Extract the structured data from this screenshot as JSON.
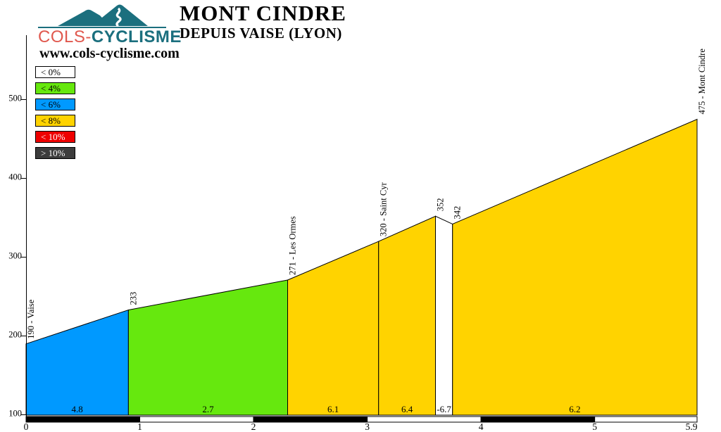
{
  "header": {
    "brand": {
      "part1": "COLS",
      "separator": "-",
      "part2": "CYCLISME",
      "part1_color": "#e0584e",
      "part2_color": "#1b6f7e"
    },
    "title": "MONT CINDRE",
    "subtitle": "DEPUIS VAISE (LYON)",
    "website": "www.cols-cyclisme.com",
    "logo_color": "#1b6f7e"
  },
  "legend": {
    "items": [
      {
        "label": "< 0%",
        "fill": "#ffffff",
        "text": "#000000"
      },
      {
        "label": "< 4%",
        "fill": "#66e80e",
        "text": "#000000"
      },
      {
        "label": "< 6%",
        "fill": "#0099ff",
        "text": "#000000"
      },
      {
        "label": "< 8%",
        "fill": "#ffd300",
        "text": "#000000"
      },
      {
        "label": "< 10%",
        "fill": "#ee0000",
        "text": "#ffffff"
      },
      {
        "label": "> 10%",
        "fill": "#3c3c3c",
        "text": "#ffffff"
      }
    ]
  },
  "chart_data": {
    "type": "area",
    "title": "MONT CINDRE DEPUIS VAISE (LYON) - climb profile",
    "x_unit": "km",
    "y_unit": "m",
    "xlim": [
      0,
      5.9
    ],
    "ylim": [
      100,
      580
    ],
    "yticks": [
      100,
      200,
      300,
      400,
      500
    ],
    "xticks": [
      {
        "km": 0,
        "label": "0"
      },
      {
        "km": 1,
        "label": "1"
      },
      {
        "km": 2,
        "label": "2"
      },
      {
        "km": 3,
        "label": "3"
      },
      {
        "km": 4,
        "label": "4"
      },
      {
        "km": 5,
        "label": "5"
      },
      {
        "km": 5.9,
        "label": "5.9"
      }
    ],
    "segments": [
      {
        "from_km": 0,
        "to_km": 0.9,
        "from_ele": 190,
        "to_ele": 233,
        "gradient_pct": "4.8",
        "fill": "#0099ff"
      },
      {
        "from_km": 0.9,
        "to_km": 2.3,
        "from_ele": 233,
        "to_ele": 271,
        "gradient_pct": "2.7",
        "fill": "#66e80e"
      },
      {
        "from_km": 2.3,
        "to_km": 3.1,
        "from_ele": 271,
        "to_ele": 320,
        "gradient_pct": "6.1",
        "fill": "#ffd300"
      },
      {
        "from_km": 3.1,
        "to_km": 3.6,
        "from_ele": 320,
        "to_ele": 352,
        "gradient_pct": "6.4",
        "fill": "#ffd300"
      },
      {
        "from_km": 3.6,
        "to_km": 3.75,
        "from_ele": 352,
        "to_ele": 342,
        "gradient_pct": "-6.7",
        "fill": "#ffffff"
      },
      {
        "from_km": 3.75,
        "to_km": 5.9,
        "from_ele": 342,
        "to_ele": 475,
        "gradient_pct": "6.2",
        "fill": "#ffd300"
      }
    ],
    "point_labels": [
      {
        "km": 0,
        "ele": 190,
        "label": "190 - Vaise"
      },
      {
        "km": 0.9,
        "ele": 233,
        "label": "233"
      },
      {
        "km": 2.3,
        "ele": 271,
        "label": "271 - Les Ormes"
      },
      {
        "km": 3.1,
        "ele": 320,
        "label": "320 - Saint Cyr"
      },
      {
        "km": 3.6,
        "ele": 352,
        "label": "352"
      },
      {
        "km": 3.75,
        "ele": 342,
        "label": "342"
      },
      {
        "km": 5.9,
        "ele": 475,
        "label": "475 - Mont Cindre"
      }
    ],
    "km_bar": [
      {
        "from": 0,
        "to": 1,
        "fill": "#000000"
      },
      {
        "from": 1,
        "to": 2,
        "fill": "#ffffff"
      },
      {
        "from": 2,
        "to": 3,
        "fill": "#000000"
      },
      {
        "from": 3,
        "to": 4,
        "fill": "#ffffff"
      },
      {
        "from": 4,
        "to": 5,
        "fill": "#000000"
      },
      {
        "from": 5,
        "to": 5.9,
        "fill": "#ffffff"
      }
    ]
  }
}
